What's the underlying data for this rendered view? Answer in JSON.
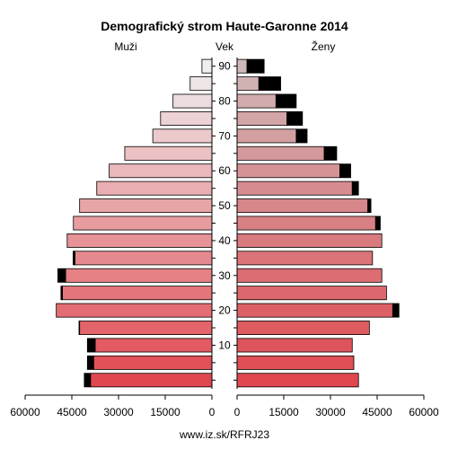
{
  "chart_data": {
    "type": "bar",
    "title": "Demografický strom Haute-Garonne 2014",
    "left_label": "Muži",
    "center_label": "Vek",
    "right_label": "Ženy",
    "footer": "www.iz.sk/RFRJ23",
    "age_groups": [
      "0-4",
      "5-9",
      "10-14",
      "15-19",
      "20-24",
      "25-29",
      "30-34",
      "35-39",
      "40-44",
      "45-49",
      "50-54",
      "55-59",
      "60-64",
      "65-69",
      "70-74",
      "75-79",
      "80-84",
      "85-89",
      "90+"
    ],
    "age_ticks": [
      "10",
      "20",
      "30",
      "40",
      "50",
      "60",
      "70",
      "80",
      "90"
    ],
    "x_ticks_left": [
      "60000",
      "45000",
      "30000",
      "15000",
      "0"
    ],
    "x_ticks_right": [
      "0",
      "15000",
      "30000",
      "45000",
      "60000"
    ],
    "xlim": [
      0,
      60000
    ],
    "series": [
      {
        "side": "male",
        "part": "base",
        "values": [
          39000,
          38000,
          37500,
          42500,
          50000,
          48000,
          47000,
          44000,
          46500,
          44500,
          42500,
          37000,
          33000,
          28000,
          19000,
          16500,
          12500,
          7000,
          3200
        ]
      },
      {
        "side": "male",
        "part": "excess",
        "values": [
          2000,
          2000,
          2500,
          200,
          0,
          500,
          2500,
          600,
          0,
          0,
          0,
          0,
          0,
          0,
          0,
          0,
          0,
          0,
          0
        ]
      },
      {
        "side": "female",
        "part": "base",
        "values": [
          39000,
          37500,
          37000,
          42500,
          50000,
          48000,
          46500,
          43500,
          46500,
          44500,
          42000,
          37000,
          33000,
          28000,
          19000,
          16000,
          12500,
          7000,
          3200
        ]
      },
      {
        "side": "female",
        "part": "excess",
        "values": [
          0,
          0,
          0,
          0,
          2000,
          0,
          0,
          0,
          0,
          1500,
          1000,
          2000,
          3500,
          4000,
          3500,
          5000,
          6500,
          7000,
          5500
        ]
      }
    ],
    "colors": {
      "female_young": "#e04850",
      "female_old": "#d0b8b8",
      "male_young": "#e04850",
      "male_old": "#efefef",
      "excess": "#000000"
    }
  }
}
